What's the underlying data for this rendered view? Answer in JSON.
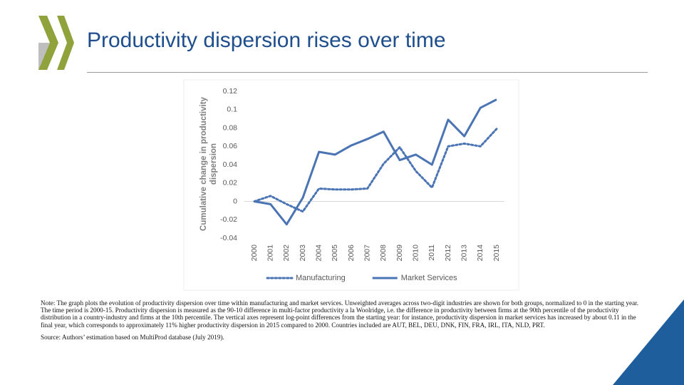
{
  "slide": {
    "title": "Productivity dispersion rises over time",
    "note": "Note: The graph plots the evolution of productivity dispersion over time within manufacturing and market services. Unweighted averages across two-digit industries are shown for both groups, normalized to 0 in the starting year. The time period is 2000-15. Productivity dispersion is measured as the 90-10 difference in multi-factor productivity a la Woolridge, i.e. the difference in productivity between firms at the 90th percentile of the productivity distribution in a country-industry and firms at the 10th percentile. The vertical axes represent log-point differences from the starting year: for instance, productivity dispersion in market services has increased by about 0.11 in the final year, which corresponds to approximately 11% higher productivity dispersion in 2015 compared to 2000. Countries included are AUT, BEL, DEU, DNK, FIN, FRA, IRL, ITA, NLD, PRT.",
    "source": "Source: Authors’ estimation based on MultiProd database (July 2019)."
  },
  "chart_data": {
    "type": "line",
    "ylabel": [
      "Cumulative change in productivity",
      "dispersion"
    ],
    "categories": [
      "2000",
      "2001",
      "2002",
      "2003",
      "2004",
      "2005",
      "2006",
      "2007",
      "2008",
      "2009",
      "2010",
      "2011",
      "2012",
      "2013",
      "2014",
      "2015"
    ],
    "series": [
      {
        "name": "Manufacturing",
        "color": "#4a74b4",
        "dash": "dotted",
        "values": [
          0,
          0.006,
          -0.003,
          -0.011,
          0.014,
          0.013,
          0.013,
          0.014,
          0.041,
          0.059,
          0.033,
          0.015,
          0.06,
          0.063,
          0.06,
          0.079
        ]
      },
      {
        "name": "Market Services",
        "color": "#4a74b4",
        "dash": "solid",
        "values": [
          0,
          -0.003,
          -0.025,
          0.004,
          0.054,
          0.051,
          0.061,
          0.068,
          0.076,
          0.045,
          0.051,
          0.04,
          0.089,
          0.071,
          0.102,
          0.111
        ]
      }
    ],
    "ylim": [
      -0.04,
      0.12
    ],
    "yticks": [
      0.12,
      0.1,
      0.08,
      0.06,
      0.04,
      0.02,
      0,
      -0.02,
      -0.04
    ],
    "grid": false,
    "legend": "bottom"
  }
}
